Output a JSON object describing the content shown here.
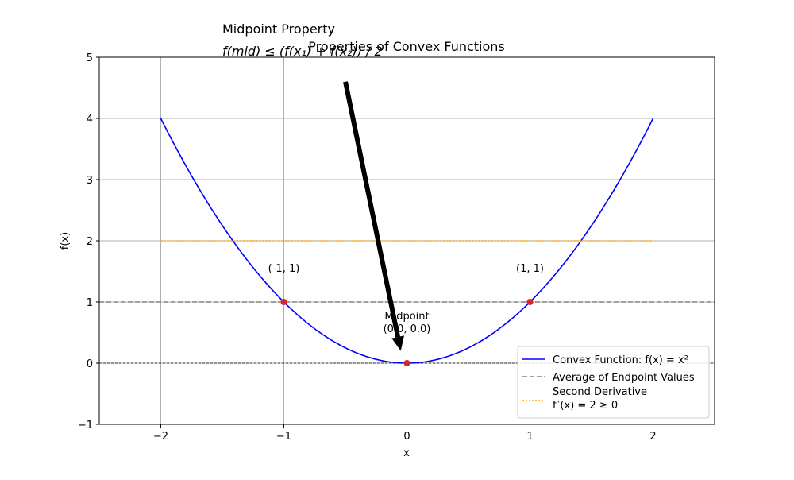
{
  "chart_data": {
    "type": "line",
    "title": "Properties of Convex Functions",
    "xlabel": "x",
    "ylabel": "f(x)",
    "xlim": [
      -2.5,
      2.5
    ],
    "ylim": [
      -1,
      5
    ],
    "xticks": [
      -2,
      -1,
      0,
      1,
      2
    ],
    "xtick_labels": [
      "−2",
      "−1",
      "0",
      "1",
      "2"
    ],
    "yticks": [
      -1,
      0,
      1,
      2,
      3,
      4,
      5
    ],
    "ytick_labels": [
      "−1",
      "0",
      "1",
      "2",
      "3",
      "4",
      "5"
    ],
    "grid": true,
    "legend_position": "lower-right",
    "series": [
      {
        "name": "Convex Function: f(x) = x²",
        "function": "x^2",
        "x_range": [
          -2,
          2
        ],
        "color": "#0000ff",
        "style": "solid"
      },
      {
        "name": "Average of Endpoint Values",
        "y": 1,
        "x_range": [
          -2.5,
          2.5
        ],
        "color": "#808080",
        "style": "dashed"
      },
      {
        "name": "Second Derivative f″(x) = 2 ≥ 0",
        "y": 2,
        "x_range": [
          -2,
          2
        ],
        "color": "#ffa500",
        "style": "dotted"
      }
    ],
    "points": [
      {
        "x": -1,
        "y": 1,
        "label": "(-1, 1)"
      },
      {
        "x": 1,
        "y": 1,
        "label": "(1, 1)"
      },
      {
        "x": 0,
        "y": 0,
        "label": "Midpoint (0.0, 0.0)"
      }
    ],
    "point_color": "#d62728",
    "reference_lines": {
      "x": 0,
      "y": 0
    },
    "legend": {
      "entries": [
        {
          "line1": "Convex Function: f(x) = x²",
          "line2": ""
        },
        {
          "line1": "Average of Endpoint Values",
          "line2": ""
        },
        {
          "line1": "Second Derivative",
          "line2": "f″(x) = 2 ≥ 0"
        }
      ]
    },
    "annotation": {
      "text_line1": "Midpoint Property",
      "text_line2": "f(mid) ≤ (f(x₁) + f(x₂)) / 2",
      "arrow_from": [
        -0.5,
        4.6
      ],
      "arrow_to": [
        -0.05,
        0.2
      ]
    }
  }
}
